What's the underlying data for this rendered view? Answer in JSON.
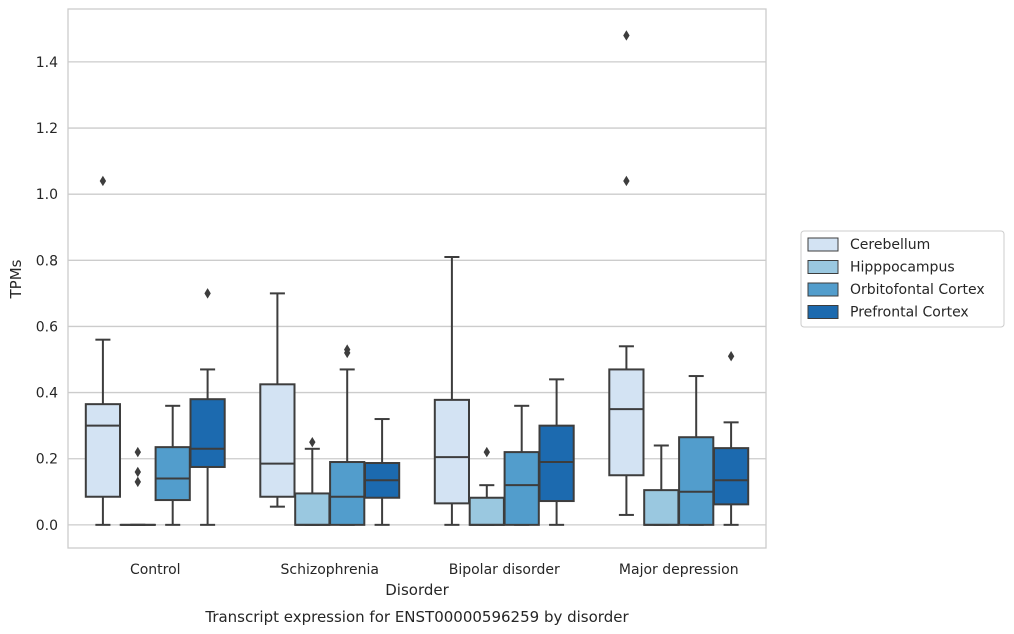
{
  "caption": "Transcript expression for ENST00000596259 by disorder",
  "chart_data": {
    "type": "box",
    "xlabel": "Disorder",
    "ylabel": "TPMs",
    "ylim": [
      -0.07,
      1.56
    ],
    "yticks": [
      "0.0",
      "0.2",
      "0.4",
      "0.6",
      "0.8",
      "1.0",
      "1.2",
      "1.4"
    ],
    "grid": "horizontal",
    "legend_position": "right",
    "categories": [
      "Control",
      "Schizophrenia",
      "Bipolar disorder",
      "Major depression"
    ],
    "series": [
      {
        "name": "Cerebellum",
        "color": "#d3e3f3",
        "boxes": [
          {
            "whisker_low": 0.0,
            "q1": 0.085,
            "median": 0.3,
            "q3": 0.365,
            "whisker_high": 0.56,
            "outliers": [
              1.04
            ]
          },
          {
            "whisker_low": 0.055,
            "q1": 0.085,
            "median": 0.185,
            "q3": 0.425,
            "whisker_high": 0.7,
            "outliers": []
          },
          {
            "whisker_low": 0.0,
            "q1": 0.065,
            "median": 0.205,
            "q3": 0.378,
            "whisker_high": 0.81,
            "outliers": []
          },
          {
            "whisker_low": 0.03,
            "q1": 0.15,
            "median": 0.35,
            "q3": 0.47,
            "whisker_high": 0.54,
            "outliers": [
              1.04,
              1.48
            ]
          }
        ]
      },
      {
        "name": "Hipppocampus",
        "color": "#9ac8e0",
        "boxes": [
          {
            "whisker_low": 0.0,
            "q1": 0.0,
            "median": 0.0,
            "q3": 0.0,
            "whisker_high": 0.0,
            "outliers": [
              0.13,
              0.16,
              0.22
            ]
          },
          {
            "whisker_low": 0.0,
            "q1": 0.0,
            "median": 0.0,
            "q3": 0.095,
            "whisker_high": 0.23,
            "outliers": [
              0.25
            ]
          },
          {
            "whisker_low": 0.0,
            "q1": 0.0,
            "median": 0.0,
            "q3": 0.082,
            "whisker_high": 0.12,
            "outliers": [
              0.22
            ]
          },
          {
            "whisker_low": 0.0,
            "q1": 0.0,
            "median": 0.0,
            "q3": 0.105,
            "whisker_high": 0.24,
            "outliers": []
          }
        ]
      },
      {
        "name": "Orbitofontal Cortex",
        "color": "#529dcc",
        "boxes": [
          {
            "whisker_low": 0.0,
            "q1": 0.075,
            "median": 0.14,
            "q3": 0.235,
            "whisker_high": 0.36,
            "outliers": []
          },
          {
            "whisker_low": 0.0,
            "q1": 0.0,
            "median": 0.085,
            "q3": 0.19,
            "whisker_high": 0.47,
            "outliers": [
              0.52,
              0.53
            ]
          },
          {
            "whisker_low": 0.0,
            "q1": 0.0,
            "median": 0.12,
            "q3": 0.22,
            "whisker_high": 0.36,
            "outliers": []
          },
          {
            "whisker_low": 0.0,
            "q1": 0.0,
            "median": 0.1,
            "q3": 0.265,
            "whisker_high": 0.45,
            "outliers": []
          }
        ]
      },
      {
        "name": "Prefrontal Cortex",
        "color": "#1c6aaf",
        "boxes": [
          {
            "whisker_low": 0.0,
            "q1": 0.175,
            "median": 0.23,
            "q3": 0.38,
            "whisker_high": 0.47,
            "outliers": [
              0.7
            ]
          },
          {
            "whisker_low": 0.0,
            "q1": 0.082,
            "median": 0.135,
            "q3": 0.187,
            "whisker_high": 0.32,
            "outliers": []
          },
          {
            "whisker_low": 0.0,
            "q1": 0.072,
            "median": 0.19,
            "q3": 0.3,
            "whisker_high": 0.44,
            "outliers": []
          },
          {
            "whisker_low": 0.0,
            "q1": 0.062,
            "median": 0.135,
            "q3": 0.232,
            "whisker_high": 0.31,
            "outliers": [
              0.51
            ]
          }
        ]
      }
    ]
  }
}
